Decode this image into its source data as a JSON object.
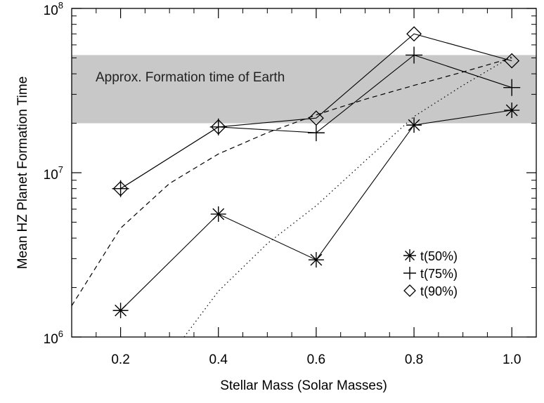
{
  "chart_data": {
    "type": "line",
    "title": "",
    "xlabel": "Stellar Mass (Solar Masses)",
    "ylabel": "Mean HZ Planet Formation Time",
    "xlim": [
      0.1,
      1.05
    ],
    "ylim": [
      1000000,
      100000000
    ],
    "yscale": "log",
    "x_ticks": [
      0.2,
      0.4,
      0.6,
      0.8,
      1.0
    ],
    "x_tick_labels": [
      "0.2",
      "0.4",
      "0.6",
      "0.8",
      "1.0"
    ],
    "y_ticks": [
      {
        "value": 1000000,
        "base": "10",
        "exp": "6"
      },
      {
        "value": 10000000,
        "base": "10",
        "exp": "7"
      },
      {
        "value": 100000000,
        "base": "10",
        "exp": "8"
      }
    ],
    "shaded_band": {
      "y_low": 20000000,
      "y_high": 52000000,
      "label": "Approx. Formation time of Earth",
      "color": "#c8c8c8"
    },
    "series": [
      {
        "name": "t(50%)",
        "marker": "asterisk",
        "x": [
          0.2,
          0.4,
          0.6,
          0.8,
          1.0
        ],
        "y": [
          1450000,
          5600000,
          2950000,
          19500000,
          24000000
        ]
      },
      {
        "name": "t(75%)",
        "marker": "plus",
        "x": [
          0.2,
          0.4,
          0.6,
          0.8,
          1.0
        ],
        "y": [
          8000000,
          19000000,
          17500000,
          52000000,
          33000000
        ]
      },
      {
        "name": "t(90%)",
        "marker": "diamond",
        "x": [
          0.2,
          0.4,
          0.6,
          0.8,
          1.0
        ],
        "y": [
          8000000,
          19000000,
          21500000,
          70000000,
          48000000
        ]
      }
    ],
    "curves": [
      {
        "style": "dashed",
        "x": [
          0.1,
          0.2,
          0.3,
          0.4,
          0.5,
          0.6,
          0.7,
          0.8,
          0.9,
          1.0
        ],
        "y": [
          1550000,
          4600000,
          8600000,
          13000000,
          17500000,
          22500000,
          28000000,
          34000000,
          41000000,
          50000000
        ]
      },
      {
        "style": "dotted",
        "x": [
          0.33,
          0.4,
          0.5,
          0.6,
          0.7,
          0.8,
          0.9,
          1.0
        ],
        "y": [
          1000000,
          1900000,
          3700000,
          6300000,
          11800000,
          22000000,
          34000000,
          51000000
        ]
      }
    ],
    "legend": {
      "placement": "lower-right",
      "entries": [
        "t(50%)",
        "t(75%)",
        "t(90%)"
      ]
    },
    "grid": false
  }
}
